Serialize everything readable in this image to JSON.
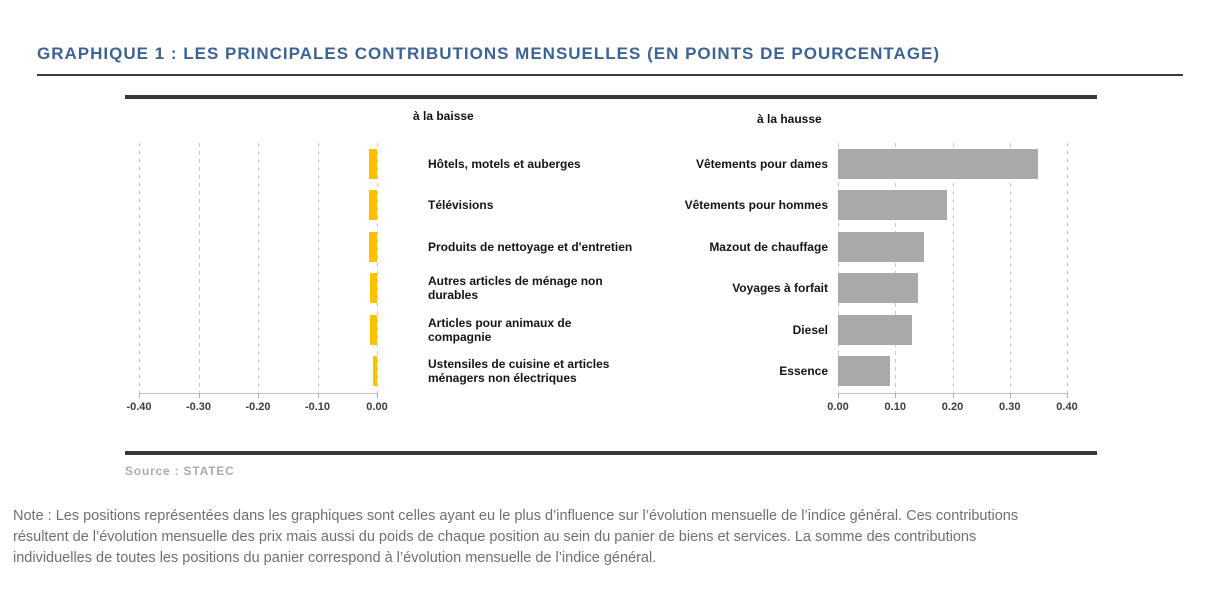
{
  "title": "GRAPHIQUE 1 : LES PRINCIPALES CONTRIBUTIONS MENSUELLES (EN POINTS DE POURCENTAGE)",
  "source": "Source : STATEC",
  "note": "Note : Les positions représentées dans les graphiques sont celles ayant eu le plus d’influence sur l’évolution mensuelle de l’indice général. Ces contributions\nrésultent de l’évolution mensuelle des prix mais aussi du poids de chaque position au sein du panier de biens et services. La somme des contributions\nindividuelles de toutes les positions du panier correspond à l’évolution mensuelle de l’indice général.",
  "colors": {
    "title_text": "#3D6394",
    "bar_down": "#FFC000",
    "bar_up": "#A9A9A9",
    "gridline": "#C9C9C9",
    "axis_line": "#BFBFBF",
    "rule": "#383838",
    "category_text": "#141414",
    "tick_text": "#3C3C3C",
    "source_text": "#ABABAB",
    "note_text": "#6F6F6F"
  },
  "chart_data": [
    {
      "type": "bar",
      "orientation": "horizontal",
      "title": "à la baisse",
      "categories": [
        "Hôtels, motels et auberges",
        "Télévisions",
        "Produits de nettoyage et d'entretien",
        "Autres articles de ménage non\ndurables",
        "Articles pour animaux de\ncompagnie",
        "Ustensiles de cuisine et articles\nménagers non électriques"
      ],
      "values": [
        -0.013,
        -0.013,
        -0.013,
        -0.012,
        -0.012,
        -0.007
      ],
      "xlim": [
        -0.4,
        0.0
      ],
      "xticks": [
        "-0.40",
        "-0.30",
        "-0.20",
        "-0.10",
        "0.00"
      ],
      "bar_color": "#FFC000",
      "grid": true,
      "legend": "none",
      "unit": "points de pourcentage"
    },
    {
      "type": "bar",
      "orientation": "horizontal",
      "title": "à la hausse",
      "categories": [
        "Vêtements pour dames",
        "Vêtements pour hommes",
        "Mazout de chauffage",
        "Voyages à forfait",
        "Diesel",
        "Essence"
      ],
      "values": [
        0.35,
        0.19,
        0.15,
        0.14,
        0.13,
        0.09
      ],
      "xlim": [
        0.0,
        0.4
      ],
      "xticks": [
        "0.00",
        "0.10",
        "0.20",
        "0.30",
        "0.40"
      ],
      "bar_color": "#A9A9A9",
      "grid": true,
      "legend": "none",
      "unit": "points de pourcentage"
    }
  ]
}
